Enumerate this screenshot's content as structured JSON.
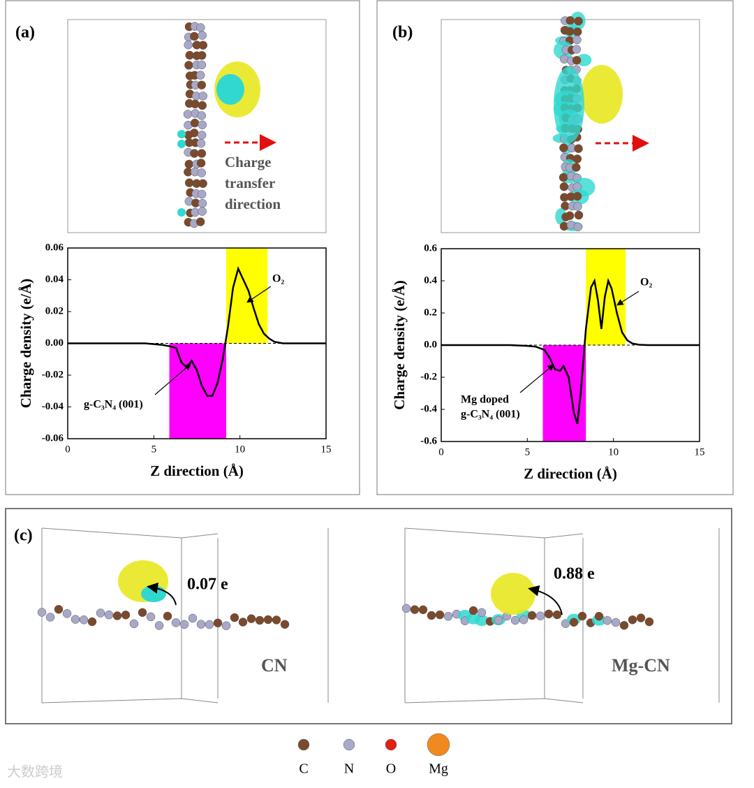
{
  "chart_data": [
    {
      "type": "line",
      "xlabel": "Z direction (Å)",
      "ylabel": "Charge density (e/Å)",
      "xlim": [
        0,
        15
      ],
      "xticks": [
        0,
        5,
        10,
        15
      ],
      "ylim": [
        -0.06,
        0.06
      ],
      "yticks": [
        -0.06,
        -0.04,
        -0.02,
        {
          "value": 0,
          "label": "0.00"
        },
        0.02,
        0.04,
        0.06
      ],
      "x": [
        0,
        1,
        2,
        3,
        4,
        4.5,
        5,
        5.5,
        6,
        6.3,
        6.6,
        6.9,
        7.2,
        7.5,
        7.8,
        8.1,
        8.4,
        8.7,
        9,
        9.3,
        9.6,
        9.9,
        10.2,
        10.5,
        10.8,
        11.1,
        11.4,
        11.7,
        12,
        12.5,
        13,
        14,
        15
      ],
      "values": [
        0,
        0,
        0,
        0,
        0,
        0,
        -0.0005,
        -0.001,
        -0.002,
        -0.003,
        -0.012,
        -0.015,
        -0.011,
        -0.017,
        -0.027,
        -0.033,
        -0.033,
        -0.025,
        -0.01,
        0.01,
        0.035,
        0.047,
        0.04,
        0.033,
        0.022,
        0.012,
        0.006,
        0.003,
        0.001,
        0,
        0,
        0,
        0
      ],
      "color": "#000000",
      "regions": [
        {
          "x": [
            5.9,
            9.2
          ],
          "color": "#ff00ff"
        },
        {
          "x": [
            9.2,
            11.6
          ],
          "color": "#ffff00"
        }
      ],
      "annotations": [
        {
          "lines": [
            "O₂"
          ]
        },
        {
          "lines": [
            "g-C₃N₄ (001)"
          ]
        }
      ]
    },
    {
      "type": "line",
      "xlabel": "Z direction (Å)",
      "ylabel": "Charge density (e/Å)",
      "xlim": [
        0,
        15
      ],
      "xticks": [
        0,
        5,
        10,
        15
      ],
      "ylim": [
        -0.6,
        0.6
      ],
      "yticks": [
        -0.6,
        -0.4,
        -0.2,
        {
          "value": 0,
          "label": "0.0"
        },
        0.2,
        0.4,
        0.6
      ],
      "x": [
        0,
        1,
        2,
        3,
        4,
        5,
        5.5,
        6,
        6.3,
        6.6,
        6.9,
        7.1,
        7.4,
        7.7,
        7.9,
        8.1,
        8.4,
        8.7,
        8.9,
        9.1,
        9.3,
        9.5,
        9.7,
        9.9,
        10.2,
        10.5,
        10.8,
        11.1,
        11.5,
        12,
        13,
        14,
        15
      ],
      "values": [
        0,
        0,
        0,
        0,
        0,
        -0.005,
        -0.01,
        -0.03,
        -0.08,
        -0.15,
        -0.16,
        -0.13,
        -0.2,
        -0.42,
        -0.49,
        -0.3,
        0.1,
        0.36,
        0.4,
        0.28,
        0.1,
        0.3,
        0.4,
        0.35,
        0.2,
        0.08,
        0.03,
        0.01,
        0.002,
        0,
        0,
        0,
        0
      ],
      "color": "#000000",
      "regions": [
        {
          "x": [
            5.9,
            8.4
          ],
          "color": "#ff00ff"
        },
        {
          "x": [
            8.4,
            10.7
          ],
          "color": "#ffff00"
        }
      ],
      "annotations": [
        {
          "lines": [
            "O₂"
          ]
        },
        {
          "lines": [
            "Mg doped",
            "g-C₃N₄ (001)"
          ]
        }
      ]
    }
  ],
  "figure": {
    "panel_labels": [
      "(a)",
      "(b)",
      "(c)"
    ],
    "transfer_label": [
      "Charge",
      "transfer",
      "direction"
    ],
    "charges": [
      "0.07 e",
      "0.88 e"
    ],
    "structures": [
      "CN",
      "Mg-CN"
    ],
    "legend": [
      {
        "label": "C",
        "color": "#7b4a2c"
      },
      {
        "label": "N",
        "color": "#a8a8c8"
      },
      {
        "label": "O",
        "color": "#e02010"
      },
      {
        "label": "Mg",
        "color": "#f08a20"
      }
    ],
    "watermark": "大数跨境"
  }
}
